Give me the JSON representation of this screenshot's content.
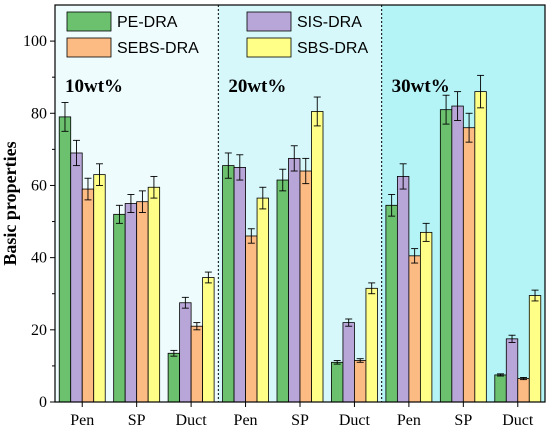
{
  "chart_data": {
    "type": "bar",
    "ylabel": "Basic properties",
    "ylim": [
      0,
      110
    ],
    "yticks": [
      0,
      20,
      40,
      60,
      80,
      100
    ],
    "grid": false,
    "legend_position": "top",
    "groups": [
      {
        "title": "10wt%",
        "background": "#eefcfd",
        "categories": [
          "Pen",
          "SP",
          "Duct"
        ],
        "series": [
          {
            "name": "PE-DRA",
            "values": [
              79,
              52,
              13.5
            ],
            "errors": [
              4,
              2.5,
              0.8
            ]
          },
          {
            "name": "SIS-DRA",
            "values": [
              69,
              55,
              27.5
            ],
            "errors": [
              3.5,
              2.5,
              1.5
            ]
          },
          {
            "name": "SEBS-DRA",
            "values": [
              59,
              55.5,
              21
            ],
            "errors": [
              3,
              3,
              1
            ]
          },
          {
            "name": "SBS-DRA",
            "values": [
              63,
              59.5,
              34.5
            ],
            "errors": [
              3,
              3,
              1.5
            ]
          }
        ]
      },
      {
        "title": "20wt%",
        "background": "#d6f8fa",
        "categories": [
          "Pen",
          "SP",
          "Duct"
        ],
        "series": [
          {
            "name": "PE-DRA",
            "values": [
              65.5,
              61.5,
              11
            ],
            "errors": [
              3.5,
              3,
              0.5
            ]
          },
          {
            "name": "SIS-DRA",
            "values": [
              65,
              67.5,
              22
            ],
            "errors": [
              3.5,
              3.5,
              1
            ]
          },
          {
            "name": "SEBS-DRA",
            "values": [
              46,
              64,
              11.5
            ],
            "errors": [
              2,
              3.5,
              0.5
            ]
          },
          {
            "name": "SBS-DRA",
            "values": [
              56.5,
              80.5,
              31.5
            ],
            "errors": [
              3,
              4,
              1.5
            ]
          }
        ]
      },
      {
        "title": "30wt%",
        "background": "#b4f4f7",
        "categories": [
          "Pen",
          "SP",
          "Duct"
        ],
        "series": [
          {
            "name": "PE-DRA",
            "values": [
              54.5,
              81,
              7.5
            ],
            "errors": [
              3,
              4,
              0.3
            ]
          },
          {
            "name": "SIS-DRA",
            "values": [
              62.5,
              82,
              17.5
            ],
            "errors": [
              3.5,
              4,
              1
            ]
          },
          {
            "name": "SEBS-DRA",
            "values": [
              40.5,
              76,
              6.5
            ],
            "errors": [
              2,
              4,
              0.3
            ]
          },
          {
            "name": "SBS-DRA",
            "values": [
              47,
              86,
              29.5
            ],
            "errors": [
              2.5,
              4.5,
              1.5
            ]
          }
        ]
      }
    ],
    "colors": {
      "PE-DRA": "#6cc16f",
      "SIS-DRA": "#b8a6d9",
      "SEBS-DRA": "#fdbb84",
      "SBS-DRA": "#ffff88"
    }
  }
}
